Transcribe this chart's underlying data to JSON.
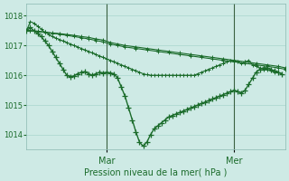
{
  "bg_color": "#ceeae5",
  "grid_color": "#a8d5ce",
  "line_color": "#1a6b2a",
  "title": "Pression niveau de la mer( hPa )",
  "ylim": [
    1013.5,
    1018.4
  ],
  "yticks": [
    1014,
    1015,
    1016,
    1017,
    1018
  ],
  "xlim": [
    0,
    71
  ],
  "mar_x": 22,
  "mer_x": 57,
  "line_slow1_x": [
    0,
    1,
    3,
    5,
    7,
    9,
    11,
    13,
    15,
    17,
    19,
    21,
    23,
    25,
    27,
    30,
    33,
    36,
    39,
    42,
    45,
    48,
    51,
    54,
    57,
    60,
    63,
    66,
    69,
    71
  ],
  "line_slow1_y": [
    1017.5,
    1017.5,
    1017.48,
    1017.45,
    1017.42,
    1017.4,
    1017.37,
    1017.34,
    1017.3,
    1017.27,
    1017.22,
    1017.18,
    1017.1,
    1017.05,
    1017.0,
    1016.95,
    1016.9,
    1016.85,
    1016.8,
    1016.75,
    1016.7,
    1016.65,
    1016.6,
    1016.55,
    1016.5,
    1016.45,
    1016.4,
    1016.35,
    1016.3,
    1016.25
  ],
  "line_slow2_x": [
    0,
    1,
    3,
    5,
    7,
    9,
    11,
    13,
    15,
    17,
    19,
    21,
    23,
    25,
    27,
    30,
    33,
    36,
    39,
    42,
    45,
    48,
    51,
    54,
    57,
    60,
    63,
    66,
    69,
    71
  ],
  "line_slow2_y": [
    1017.5,
    1017.5,
    1017.47,
    1017.44,
    1017.41,
    1017.38,
    1017.34,
    1017.3,
    1017.26,
    1017.22,
    1017.17,
    1017.12,
    1017.05,
    1017.0,
    1016.95,
    1016.9,
    1016.85,
    1016.8,
    1016.75,
    1016.7,
    1016.65,
    1016.6,
    1016.55,
    1016.5,
    1016.45,
    1016.4,
    1016.35,
    1016.3,
    1016.25,
    1016.2
  ],
  "line_medium_x": [
    0,
    1,
    2,
    3,
    4,
    5,
    6,
    7,
    8,
    9,
    10,
    11,
    12,
    13,
    14,
    15,
    16,
    17,
    18,
    19,
    20,
    21,
    22,
    23,
    24,
    25,
    26,
    27,
    28,
    29,
    30,
    31,
    32,
    33,
    34,
    35,
    36,
    37,
    38,
    39,
    40,
    41,
    42,
    43,
    44,
    45,
    46,
    47,
    48,
    49,
    50,
    51,
    52,
    53,
    54,
    55,
    56,
    57,
    58,
    59,
    60,
    61,
    62,
    63,
    64,
    65,
    66,
    67,
    68,
    69,
    70
  ],
  "line_medium_y": [
    1017.5,
    1017.8,
    1017.75,
    1017.65,
    1017.55,
    1017.45,
    1017.38,
    1017.3,
    1017.25,
    1017.2,
    1017.15,
    1017.1,
    1017.05,
    1017.0,
    1016.95,
    1016.9,
    1016.85,
    1016.8,
    1016.75,
    1016.7,
    1016.65,
    1016.6,
    1016.55,
    1016.5,
    1016.45,
    1016.4,
    1016.35,
    1016.3,
    1016.25,
    1016.2,
    1016.15,
    1016.1,
    1016.05,
    1016.02,
    1016.0,
    1016.0,
    1016.0,
    1016.0,
    1016.0,
    1016.0,
    1016.0,
    1016.0,
    1016.0,
    1016.0,
    1016.0,
    1016.0,
    1016.0,
    1016.05,
    1016.1,
    1016.15,
    1016.2,
    1016.25,
    1016.3,
    1016.35,
    1016.4,
    1016.45,
    1016.5,
    1016.5,
    1016.45,
    1016.4,
    1016.45,
    1016.5,
    1016.35,
    1016.3,
    1016.25,
    1016.2,
    1016.2,
    1016.15,
    1016.1,
    1016.1,
    1016.05
  ],
  "line_deep_x": [
    0,
    1,
    2,
    3,
    4,
    5,
    6,
    7,
    8,
    9,
    10,
    11,
    12,
    13,
    14,
    15,
    16,
    17,
    18,
    19,
    20,
    21,
    22,
    23,
    24,
    25,
    26,
    27,
    28,
    29,
    30,
    31,
    32,
    33,
    34,
    35,
    36,
    37,
    38,
    39,
    40,
    41,
    42,
    43,
    44,
    45,
    46,
    47,
    48,
    49,
    50,
    51,
    52,
    53,
    54,
    55,
    56,
    57,
    58,
    59,
    60,
    61,
    62,
    63,
    64,
    65,
    66,
    67,
    68,
    69,
    70
  ],
  "line_deep_y": [
    1017.5,
    1017.6,
    1017.5,
    1017.4,
    1017.3,
    1017.15,
    1017.0,
    1016.8,
    1016.6,
    1016.4,
    1016.2,
    1016.0,
    1015.95,
    1015.98,
    1016.05,
    1016.1,
    1016.12,
    1016.05,
    1016.0,
    1016.05,
    1016.1,
    1016.08,
    1016.1,
    1016.08,
    1016.05,
    1015.9,
    1015.6,
    1015.3,
    1014.9,
    1014.5,
    1014.1,
    1013.75,
    1013.62,
    1013.75,
    1014.0,
    1014.2,
    1014.3,
    1014.4,
    1014.5,
    1014.6,
    1014.65,
    1014.7,
    1014.75,
    1014.8,
    1014.85,
    1014.9,
    1014.95,
    1015.0,
    1015.05,
    1015.1,
    1015.15,
    1015.2,
    1015.25,
    1015.3,
    1015.35,
    1015.4,
    1015.45,
    1015.5,
    1015.45,
    1015.4,
    1015.5,
    1015.7,
    1015.9,
    1016.1,
    1016.2,
    1016.25,
    1016.25,
    1016.2,
    1016.15,
    1016.1,
    1016.05
  ]
}
